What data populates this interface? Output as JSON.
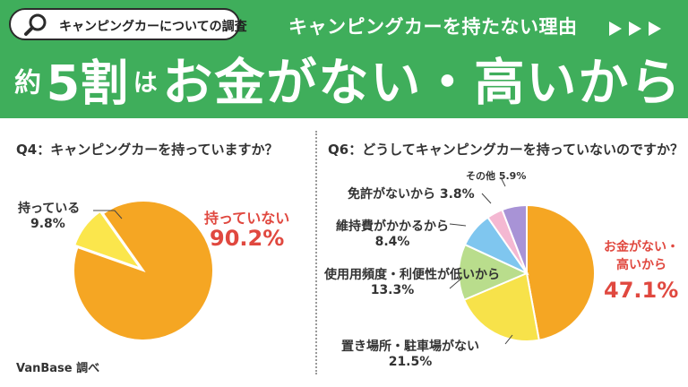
{
  "header": {
    "survey_label": "キャンピングカーについての調査",
    "subtitle": "キャンピングカーを持たない理由",
    "headline_prefix": "約",
    "headline_number": "5割",
    "headline_particle": "は",
    "headline_main": "お金がない・高いから",
    "colors": {
      "banner": "#3fae5b",
      "text": "#ffffff"
    },
    "icons": [
      "magnifier-icon",
      "triple-arrow-icon"
    ]
  },
  "source": "VanBase 調べ",
  "chart_data": [
    {
      "type": "pie",
      "title": "Q4：キャンピングカーを持っていますか？",
      "slices": [
        {
          "label": "持っていない",
          "value": 90.2,
          "display": "90.2%",
          "color": "#f5a623"
        },
        {
          "label": "持っている",
          "value": 9.8,
          "display": "9.8%",
          "color": "#fbe64c"
        }
      ]
    },
    {
      "type": "pie",
      "title": "Q6：どうしてキャンピングカーを持っていないのですか？",
      "slices": [
        {
          "label": "お金がない・高いから",
          "value": 47.1,
          "display": "47.1%",
          "color": "#f5a623"
        },
        {
          "label": "置き場所・駐車場がない",
          "value": 21.5,
          "display": "21.5%",
          "color": "#f7e24a"
        },
        {
          "label": "使用用頻度・利便性が低いから",
          "value": 13.3,
          "display": "13.3%",
          "color": "#b9dd8c"
        },
        {
          "label": "維持費がかかるから",
          "value": 8.4,
          "display": "8.4%",
          "color": "#7fc6ef"
        },
        {
          "label": "免許がないから",
          "value": 3.8,
          "display": "3.8%",
          "color": "#f4b8d2"
        },
        {
          "label": "その他",
          "value": 5.9,
          "display": "5.9%",
          "color": "#a893d6"
        }
      ]
    }
  ]
}
